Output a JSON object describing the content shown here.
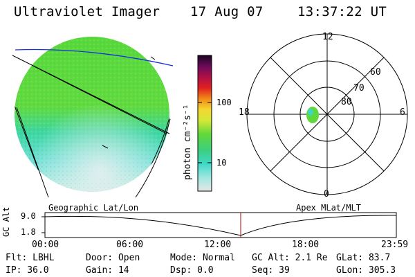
{
  "header": {
    "instrument": "Ultraviolet Imager",
    "date": "17 Aug 07",
    "time": "13:37:22 UT"
  },
  "colorbar": {
    "unit_label": "photon cm⁻²s⁻¹",
    "ticks": [
      "100",
      "10"
    ]
  },
  "polar_plot": {
    "mlt_labels": [
      "12",
      "18",
      "6",
      "0"
    ],
    "lat_labels": [
      "60",
      "70",
      "80"
    ]
  },
  "panels": {
    "left_caption": "Geographic Lat/Lon",
    "right_caption": "Apex MLat/MLT"
  },
  "altitude_plot": {
    "y_label": "GC Alt",
    "y_ticks": [
      "9.0",
      "1.8"
    ],
    "x_ticks": [
      "00:00",
      "06:00",
      "12:00",
      "18:00",
      "23:59"
    ]
  },
  "status": {
    "filter": "Flt: LBHL",
    "ip": "IP: 36.0",
    "door": "Door: Open",
    "gain": "Gain: 14",
    "mode": "Mode: Normal",
    "dsp": "Dsp:    0.0",
    "gc_alt": "GC Alt: 2.1 Re",
    "seq": "Seq: 39",
    "glat": "GLat:  83.7",
    "glon": "GLon: 305.3"
  },
  "colors": {
    "disk_green": "#5fd83c",
    "disk_cyan": "#3fd6c4",
    "coastline": "#1a2fe0",
    "marker": "#b40000"
  }
}
